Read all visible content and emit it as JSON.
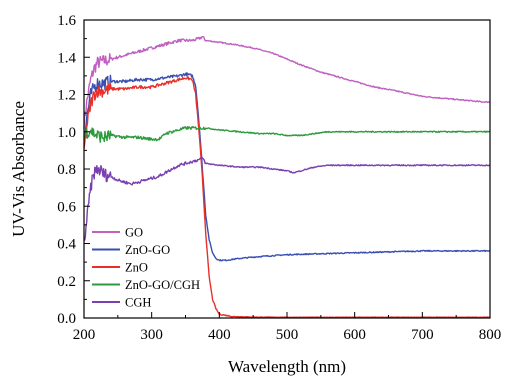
{
  "chart_data": {
    "type": "line",
    "title": "",
    "xlabel": "Wavelength (nm)",
    "ylabel": "UV-Vis Absorbance",
    "xlim": [
      200,
      800
    ],
    "ylim": [
      0.0,
      1.6
    ],
    "x_ticks": [
      200,
      300,
      400,
      500,
      600,
      700,
      800
    ],
    "y_ticks": [
      0.0,
      0.2,
      0.4,
      0.6,
      0.8,
      1.0,
      1.2,
      1.4,
      1.6
    ],
    "x_tick_labels": [
      "200",
      "300",
      "400",
      "500",
      "600",
      "700",
      "800"
    ],
    "y_tick_labels": [
      "0.0",
      "0.2",
      "0.4",
      "0.6",
      "0.8",
      "1.0",
      "1.2",
      "1.4",
      "1.6"
    ],
    "grid": false,
    "legend_position": "bottom-left",
    "series": [
      {
        "name": "GO",
        "color": "#c060c0",
        "points": [
          [
            200,
            1.05
          ],
          [
            205,
            1.18
          ],
          [
            210,
            1.28
          ],
          [
            215,
            1.34
          ],
          [
            220,
            1.37
          ],
          [
            230,
            1.38
          ],
          [
            240,
            1.39
          ],
          [
            250,
            1.4
          ],
          [
            260,
            1.41
          ],
          [
            270,
            1.42
          ],
          [
            280,
            1.43
          ],
          [
            290,
            1.44
          ],
          [
            300,
            1.45
          ],
          [
            310,
            1.46
          ],
          [
            320,
            1.47
          ],
          [
            330,
            1.48
          ],
          [
            340,
            1.49
          ],
          [
            350,
            1.49
          ],
          [
            360,
            1.49
          ],
          [
            370,
            1.5
          ],
          [
            375,
            1.51
          ],
          [
            380,
            1.49
          ],
          [
            400,
            1.48
          ],
          [
            420,
            1.47
          ],
          [
            450,
            1.45
          ],
          [
            480,
            1.42
          ],
          [
            500,
            1.39
          ],
          [
            520,
            1.36
          ],
          [
            550,
            1.32
          ],
          [
            580,
            1.29
          ],
          [
            600,
            1.27
          ],
          [
            630,
            1.24
          ],
          [
            660,
            1.22
          ],
          [
            700,
            1.19
          ],
          [
            730,
            1.18
          ],
          [
            760,
            1.17
          ],
          [
            790,
            1.16
          ],
          [
            800,
            1.16
          ]
        ]
      },
      {
        "name": "ZnO-GO",
        "color": "#3a4fb0",
        "points": [
          [
            200,
            0.95
          ],
          [
            205,
            1.1
          ],
          [
            210,
            1.2
          ],
          [
            215,
            1.24
          ],
          [
            220,
            1.26
          ],
          [
            230,
            1.26
          ],
          [
            240,
            1.27
          ],
          [
            260,
            1.27
          ],
          [
            280,
            1.28
          ],
          [
            300,
            1.28
          ],
          [
            320,
            1.29
          ],
          [
            340,
            1.3
          ],
          [
            350,
            1.31
          ],
          [
            360,
            1.3
          ],
          [
            365,
            1.25
          ],
          [
            370,
            1.05
          ],
          [
            375,
            0.8
          ],
          [
            380,
            0.55
          ],
          [
            385,
            0.42
          ],
          [
            390,
            0.35
          ],
          [
            395,
            0.32
          ],
          [
            400,
            0.31
          ],
          [
            410,
            0.31
          ],
          [
            430,
            0.32
          ],
          [
            460,
            0.33
          ],
          [
            500,
            0.34
          ],
          [
            550,
            0.345
          ],
          [
            600,
            0.35
          ],
          [
            650,
            0.355
          ],
          [
            700,
            0.36
          ],
          [
            750,
            0.36
          ],
          [
            800,
            0.36
          ]
        ]
      },
      {
        "name": "ZnO",
        "color": "#e8302a",
        "points": [
          [
            200,
            0.9
          ],
          [
            205,
            1.05
          ],
          [
            210,
            1.15
          ],
          [
            215,
            1.2
          ],
          [
            220,
            1.22
          ],
          [
            230,
            1.22
          ],
          [
            240,
            1.23
          ],
          [
            260,
            1.23
          ],
          [
            280,
            1.24
          ],
          [
            300,
            1.24
          ],
          [
            320,
            1.26
          ],
          [
            340,
            1.28
          ],
          [
            350,
            1.29
          ],
          [
            360,
            1.28
          ],
          [
            365,
            1.2
          ],
          [
            370,
            1.0
          ],
          [
            375,
            0.75
          ],
          [
            380,
            0.45
          ],
          [
            385,
            0.22
          ],
          [
            390,
            0.1
          ],
          [
            395,
            0.05
          ],
          [
            400,
            0.02
          ],
          [
            420,
            0.008
          ],
          [
            450,
            0.005
          ],
          [
            500,
            0.004
          ],
          [
            600,
            0.004
          ],
          [
            700,
            0.004
          ],
          [
            800,
            0.004
          ]
        ]
      },
      {
        "name": "ZnO-GO/CGH",
        "color": "#2e9a3e",
        "points": [
          [
            200,
            0.98
          ],
          [
            205,
            1.0
          ],
          [
            210,
            1.01
          ],
          [
            215,
            0.99
          ],
          [
            220,
            0.98
          ],
          [
            230,
            0.97
          ],
          [
            240,
            0.98
          ],
          [
            260,
            0.97
          ],
          [
            280,
            0.97
          ],
          [
            300,
            0.96
          ],
          [
            310,
            0.96
          ],
          [
            315,
            0.97
          ],
          [
            320,
            0.99
          ],
          [
            330,
            1.0
          ],
          [
            340,
            1.01
          ],
          [
            350,
            1.02
          ],
          [
            360,
            1.02
          ],
          [
            380,
            1.02
          ],
          [
            400,
            1.01
          ],
          [
            430,
            1.0
          ],
          [
            460,
            0.99
          ],
          [
            480,
            0.99
          ],
          [
            500,
            0.98
          ],
          [
            510,
            0.98
          ],
          [
            520,
            0.98
          ],
          [
            540,
            0.99
          ],
          [
            560,
            1.0
          ],
          [
            600,
            1.0
          ],
          [
            650,
            1.0
          ],
          [
            700,
            1.0
          ],
          [
            750,
            1.0
          ],
          [
            800,
            1.0
          ]
        ]
      },
      {
        "name": "CGH",
        "color": "#7a3fb0",
        "points": [
          [
            200,
            0.4
          ],
          [
            205,
            0.55
          ],
          [
            210,
            0.7
          ],
          [
            215,
            0.78
          ],
          [
            220,
            0.8
          ],
          [
            225,
            0.79
          ],
          [
            230,
            0.77
          ],
          [
            240,
            0.76
          ],
          [
            250,
            0.74
          ],
          [
            260,
            0.73
          ],
          [
            270,
            0.72
          ],
          [
            280,
            0.73
          ],
          [
            290,
            0.74
          ],
          [
            300,
            0.75
          ],
          [
            310,
            0.76
          ],
          [
            320,
            0.78
          ],
          [
            330,
            0.8
          ],
          [
            340,
            0.82
          ],
          [
            350,
            0.83
          ],
          [
            360,
            0.84
          ],
          [
            370,
            0.85
          ],
          [
            375,
            0.86
          ],
          [
            380,
            0.83
          ],
          [
            400,
            0.82
          ],
          [
            430,
            0.81
          ],
          [
            460,
            0.81
          ],
          [
            480,
            0.8
          ],
          [
            500,
            0.79
          ],
          [
            510,
            0.78
          ],
          [
            520,
            0.79
          ],
          [
            540,
            0.81
          ],
          [
            560,
            0.82
          ],
          [
            600,
            0.82
          ],
          [
            650,
            0.82
          ],
          [
            700,
            0.82
          ],
          [
            750,
            0.82
          ],
          [
            800,
            0.82
          ]
        ]
      }
    ]
  }
}
